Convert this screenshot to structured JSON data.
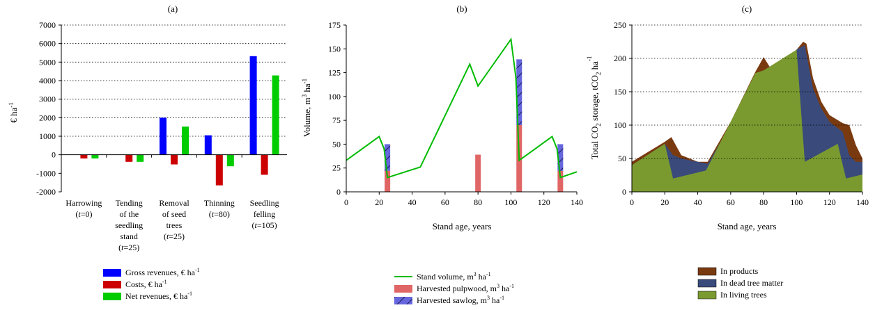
{
  "chart_data": [
    {
      "type": "bar",
      "title": "(a)",
      "ylabel": "€ ha",
      "ylabel_sup": "-1",
      "ylim": [
        -2000,
        7000
      ],
      "yticks": [
        -2000,
        -1000,
        0,
        1000,
        2000,
        3000,
        4000,
        5000,
        6000,
        7000
      ],
      "categories": [
        {
          "lines": [
            "Harrowing"
          ],
          "t_label": "t",
          "t_value": "=0"
        },
        {
          "lines": [
            "Tending",
            "of the",
            "seedling",
            "stand"
          ],
          "t_label": "t",
          "t_value": "=25"
        },
        {
          "lines": [
            "Removal",
            "of seed",
            "trees"
          ],
          "t_label": "t",
          "t_value": "=25"
        },
        {
          "lines": [
            "Thinning"
          ],
          "t_label": "t",
          "t_value": "=80"
        },
        {
          "lines": [
            "Seedling",
            "felling"
          ],
          "t_label": "t",
          "t_value": "=105"
        }
      ],
      "series": [
        {
          "name": "Gross revenues, € ha",
          "sup": "-1",
          "color": "#0000ff",
          "values": [
            0,
            0,
            2000,
            1050,
            5320
          ]
        },
        {
          "name": "Costs, € ha",
          "sup": "-1",
          "color": "#cc0000",
          "values": [
            -200,
            -380,
            -520,
            -1650,
            -1080
          ]
        },
        {
          "name": "Net revenues, € ha",
          "sup": "-1",
          "color": "#00cc00",
          "values": [
            -200,
            -380,
            1520,
            -620,
            4280
          ]
        }
      ]
    },
    {
      "type": "line",
      "title": "(b)",
      "xlabel": "Stand age, years",
      "ylabel": "Volume, m",
      "ylabel_sup1": "3",
      "ylabel_mid": " ha",
      "ylabel_sup2": "-1",
      "xlim": [
        0,
        140
      ],
      "ylim": [
        0,
        175
      ],
      "xticks": [
        0,
        20,
        40,
        60,
        80,
        100,
        120,
        140
      ],
      "yticks": [
        0,
        25,
        50,
        75,
        100,
        125,
        150,
        175
      ],
      "stand_volume": {
        "name": "Stand volume, m",
        "sup": "3",
        "unit_end": " ha",
        "sup2": "-1",
        "color": "#00bb00",
        "points": [
          [
            0,
            33
          ],
          [
            20,
            58
          ],
          [
            23,
            45
          ],
          [
            25,
            15
          ],
          [
            45,
            26
          ],
          [
            75,
            134
          ],
          [
            80,
            111
          ],
          [
            100,
            160
          ],
          [
            103,
            120
          ],
          [
            105,
            33
          ],
          [
            125,
            58
          ],
          [
            128,
            45
          ],
          [
            130,
            15
          ],
          [
            140,
            21
          ]
        ]
      },
      "pulpwood": {
        "name": "Harvested pulpwood, m",
        "sup": "3",
        "unit_end": " ha",
        "sup2": "-1",
        "color": "#e06666",
        "bars": [
          [
            25,
            22
          ],
          [
            80,
            39
          ],
          [
            105,
            70
          ],
          [
            130,
            22
          ]
        ]
      },
      "sawlog": {
        "name": "Harvested sawlog, m",
        "sup": "3",
        "unit_end": " ha",
        "sup2": "-1",
        "color": "#6666dd",
        "bars": [
          [
            25,
            28
          ],
          [
            105,
            69
          ],
          [
            130,
            28
          ]
        ]
      }
    },
    {
      "type": "area",
      "title": "(c)",
      "xlabel": "Stand age, years",
      "ylabel_parts": [
        "Total CO",
        "2",
        " storage, tCO",
        "2",
        " ha",
        "-1"
      ],
      "xlim": [
        0,
        140
      ],
      "ylim": [
        0,
        250
      ],
      "xticks": [
        0,
        20,
        40,
        60,
        80,
        100,
        120,
        140
      ],
      "yticks": [
        0,
        50,
        100,
        150,
        200,
        250
      ],
      "series": [
        {
          "name": "In products",
          "color": "#7a3a10",
          "points": [
            [
              0,
              45
            ],
            [
              20,
              75
            ],
            [
              24,
              82
            ],
            [
              30,
              55
            ],
            [
              40,
              45
            ],
            [
              46,
              45
            ],
            [
              60,
              105
            ],
            [
              75,
              180
            ],
            [
              80,
              202
            ],
            [
              85,
              182
            ],
            [
              100,
              213
            ],
            [
              104,
              225
            ],
            [
              106,
              222
            ],
            [
              110,
              170
            ],
            [
              115,
              135
            ],
            [
              120,
              115
            ],
            [
              128,
              103
            ],
            [
              132,
              100
            ],
            [
              136,
              70
            ],
            [
              140,
              50
            ]
          ]
        },
        {
          "name": "In dead tree matter",
          "color": "#3a4a7a",
          "points": [
            [
              0,
              40
            ],
            [
              20,
              72
            ],
            [
              25,
              55
            ],
            [
              30,
              50
            ],
            [
              40,
              45
            ],
            [
              46,
              42
            ],
            [
              60,
              100
            ],
            [
              75,
              175
            ],
            [
              80,
              145
            ],
            [
              85,
              165
            ],
            [
              100,
              213
            ],
            [
              105,
              220
            ],
            [
              110,
              155
            ],
            [
              115,
              125
            ],
            [
              120,
              105
            ],
            [
              128,
              90
            ],
            [
              132,
              55
            ],
            [
              136,
              45
            ],
            [
              140,
              45
            ]
          ]
        },
        {
          "name": "In living trees",
          "color": "#7a9a30",
          "points": [
            [
              0,
              40
            ],
            [
              20,
              72
            ],
            [
              25,
              20
            ],
            [
              45,
              32
            ],
            [
              60,
              105
            ],
            [
              75,
              178
            ],
            [
              80,
              182
            ],
            [
              100,
              213
            ],
            [
              105,
              45
            ],
            [
              125,
              72
            ],
            [
              130,
              20
            ],
            [
              140,
              26
            ]
          ]
        }
      ]
    }
  ]
}
